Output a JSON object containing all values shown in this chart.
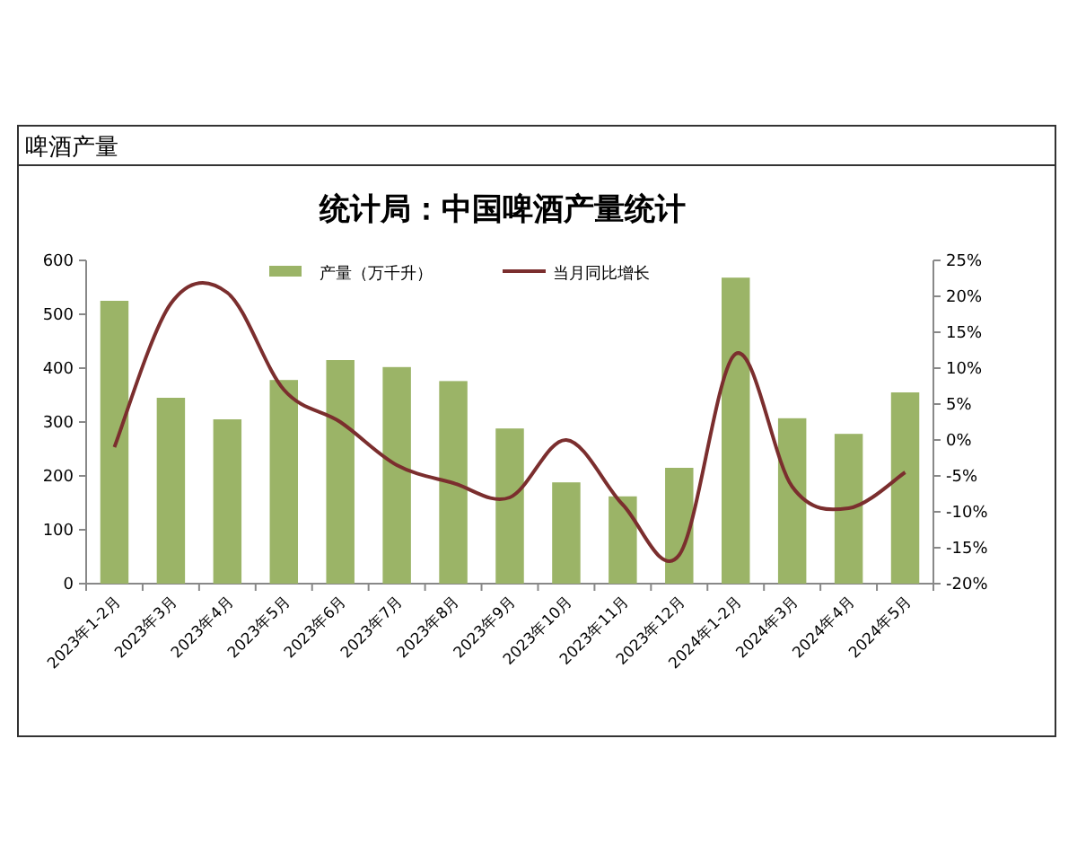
{
  "chart_data": {
    "type": "bar",
    "title": "统计局：中国啤酒产量统计",
    "annotations": [
      "啤酒产量"
    ],
    "categories": [
      "2023年1-2月",
      "2023年3月",
      "2023年4月",
      "2023年5月",
      "2023年6月",
      "2023年7月",
      "2023年8月",
      "2023年9月",
      "2023年10月",
      "2023年11月",
      "2023年12月",
      "2024年1-2月",
      "2024年3月",
      "2024年4月",
      "2024年5月"
    ],
    "series": [
      {
        "name": "产量（万千升）",
        "color": "#9bb467",
        "values": [
          525,
          345,
          305,
          378,
          415,
          402,
          376,
          288,
          188,
          162,
          215,
          568,
          307,
          278,
          355
        ]
      },
      {
        "name": "当月同比增长",
        "type": "line",
        "axis": "y2",
        "color": "#7b2e2e",
        "values": [
          -1,
          19,
          20.5,
          7,
          2.5,
          -3.5,
          -6,
          -8,
          0,
          -9,
          -16,
          12,
          -6.5,
          -9.5,
          -4.5
        ]
      }
    ],
    "ylim": [
      0,
      600
    ],
    "yticks": [
      0,
      100,
      200,
      300,
      400,
      500,
      600
    ],
    "y2lim": [
      -20,
      25
    ],
    "y2ticks": [
      {
        "value": -20,
        "label": "-20%"
      },
      {
        "value": -15,
        "label": "-15%"
      },
      {
        "value": -10,
        "label": "-10%"
      },
      {
        "value": -5,
        "label": "-5%"
      },
      {
        "value": 0,
        "label": "0%"
      },
      {
        "value": 5,
        "label": "5%"
      },
      {
        "value": 10,
        "label": "10%"
      },
      {
        "value": 15,
        "label": "15%"
      },
      {
        "value": 20,
        "label": "20%"
      },
      {
        "value": 25,
        "label": "25%"
      }
    ],
    "legend": "top",
    "grid": false,
    "marker": "none",
    "line_style": "solid"
  }
}
